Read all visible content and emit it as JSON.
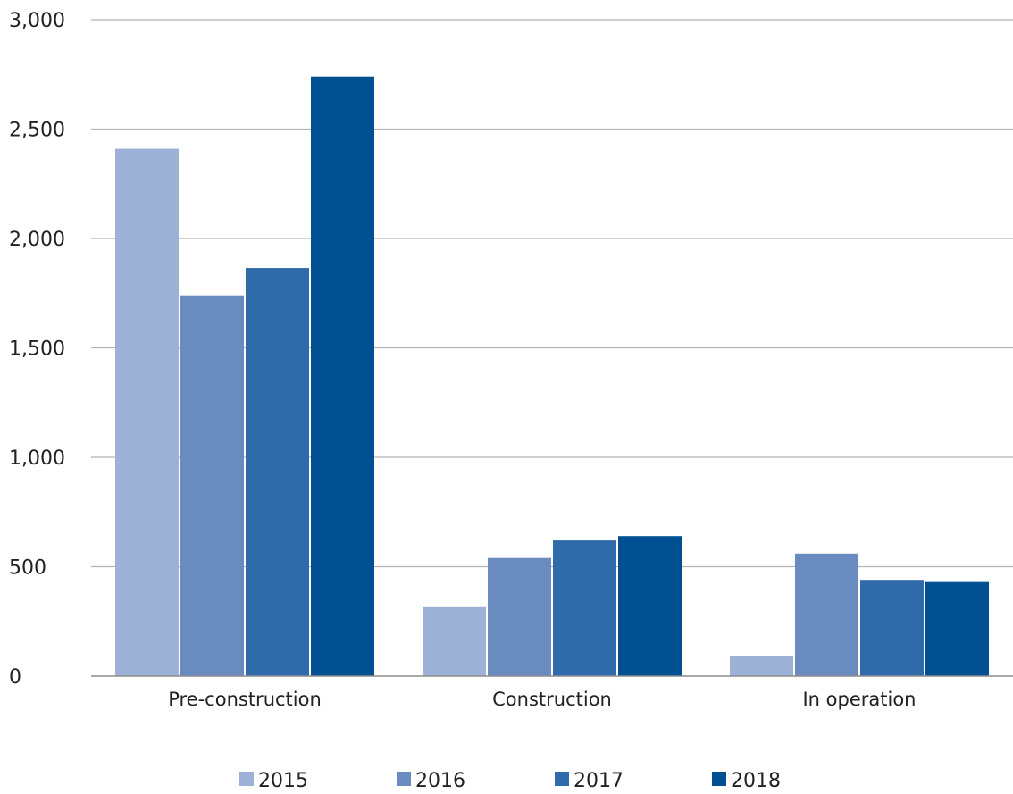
{
  "chart_data": {
    "type": "bar",
    "categories": [
      "Pre-construction",
      "Construction",
      "In operation"
    ],
    "series": [
      {
        "name": "2015",
        "values": [
          2410,
          315,
          90
        ],
        "color": "#9db0d6"
      },
      {
        "name": "2016",
        "values": [
          1740,
          540,
          560
        ],
        "color": "#6a8bc0"
      },
      {
        "name": "2017",
        "values": [
          1865,
          620,
          440
        ],
        "color": "#2f6aaa"
      },
      {
        "name": "2018",
        "values": [
          2740,
          640,
          430
        ],
        "color": "#005092"
      }
    ],
    "title": "",
    "xlabel": "",
    "ylabel": "",
    "ylim": [
      0,
      3000
    ],
    "yticks": [
      0,
      500,
      1000,
      1500,
      2000,
      2500,
      3000
    ],
    "ytick_labels": [
      "0",
      "500",
      "1,000",
      "1,500",
      "2,000",
      "2,500",
      "3,000"
    ],
    "grid": "horizontal",
    "legend": "bottom-center",
    "colors": {
      "grid": "#b3b3b3",
      "axis": "#8c8c8c",
      "text": "#222222"
    }
  }
}
